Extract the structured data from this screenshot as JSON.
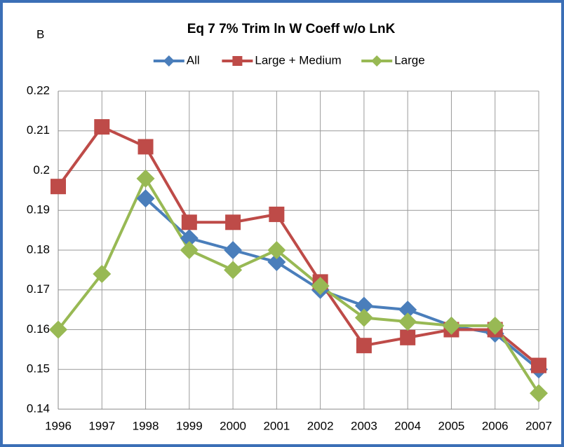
{
  "chart_data": {
    "type": "line",
    "title": "Eq 7 7% Trim ln W Coeff w/o LnK",
    "annotation": "B",
    "x": [
      1996,
      1997,
      1998,
      1999,
      2000,
      2001,
      2002,
      2003,
      2004,
      2005,
      2006,
      2007
    ],
    "xlim": [
      1996,
      2007
    ],
    "xticks": [
      1996,
      1997,
      1998,
      1999,
      2000,
      2001,
      2002,
      2003,
      2004,
      2005,
      2006,
      2007
    ],
    "ylim": [
      0.14,
      0.22
    ],
    "yticks": [
      0.14,
      0.15,
      0.16,
      0.17,
      0.18,
      0.19,
      0.2,
      0.21,
      0.22
    ],
    "grid": true,
    "legend": "top",
    "series": [
      {
        "name": "All",
        "color": "#4a7ebb",
        "marker": "diamond",
        "values": [
          null,
          null,
          0.193,
          0.183,
          0.18,
          0.177,
          0.17,
          0.166,
          0.165,
          0.161,
          0.159,
          0.15
        ]
      },
      {
        "name": "Large + Medium",
        "color": "#be4b48",
        "marker": "square",
        "values": [
          0.196,
          0.211,
          0.206,
          0.187,
          0.187,
          0.189,
          0.172,
          0.156,
          0.158,
          0.16,
          0.16,
          0.151
        ]
      },
      {
        "name": "Large",
        "color": "#98b954",
        "marker": "diamond",
        "values": [
          0.16,
          0.174,
          0.198,
          0.18,
          0.175,
          0.18,
          0.171,
          0.163,
          0.162,
          0.161,
          0.161,
          0.144
        ]
      }
    ]
  }
}
